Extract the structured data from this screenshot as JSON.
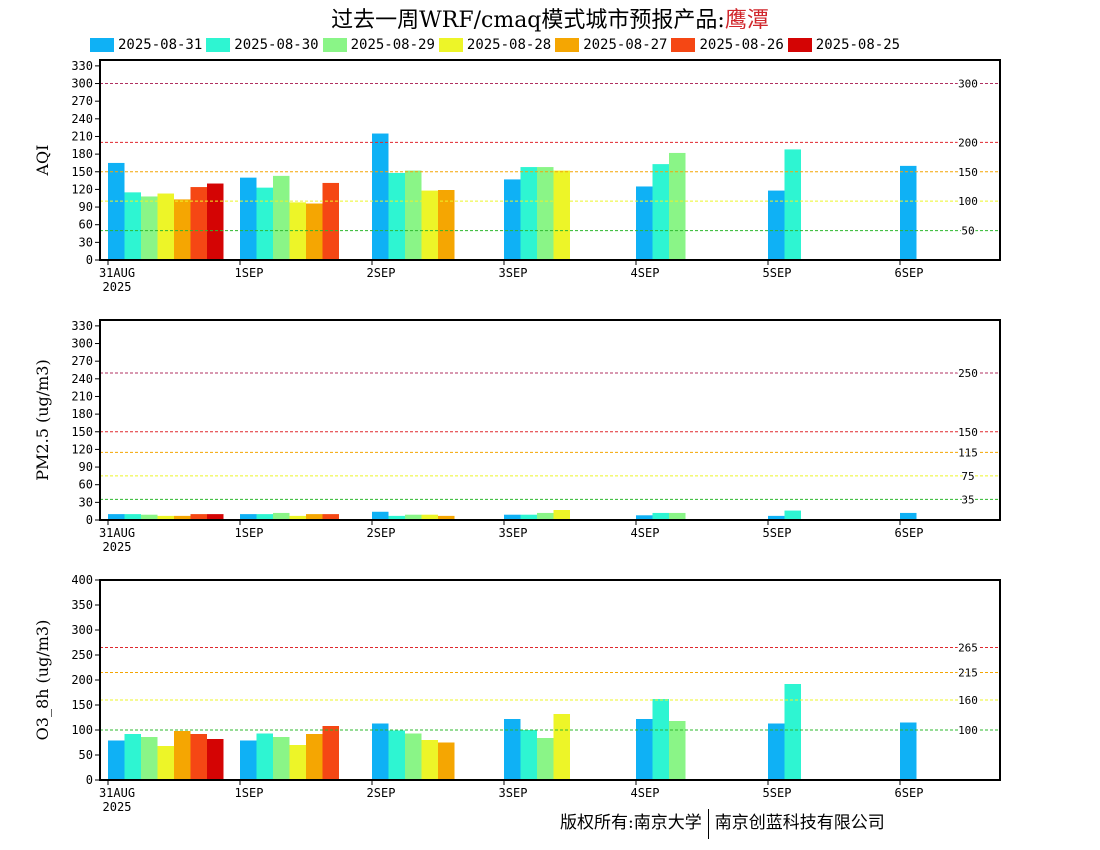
{
  "title": {
    "prefix": "过去一周WRF/cmaq模式城市预报产品:",
    "city": "鹰潭"
  },
  "legend": {
    "items": [
      {
        "label": "2025-08-31",
        "color": "#0fb1f5"
      },
      {
        "label": "2025-08-30",
        "color": "#2ef5d2"
      },
      {
        "label": "2025-08-29",
        "color": "#8af587"
      },
      {
        "label": "2025-08-28",
        "color": "#edf528"
      },
      {
        "label": "2025-08-27",
        "color": "#f5a602"
      },
      {
        "label": "2025-08-26",
        "color": "#f54714"
      },
      {
        "label": "2025-08-25",
        "color": "#d40404"
      }
    ]
  },
  "x_axis": {
    "categories": [
      "31AUG",
      "1SEP",
      "2SEP",
      "3SEP",
      "4SEP",
      "5SEP",
      "6SEP"
    ],
    "first_year": "2025"
  },
  "chart_data": [
    {
      "type": "bar",
      "ylabel": "AQI",
      "ylim": [
        0,
        340
      ],
      "yticks": [
        0,
        30,
        60,
        90,
        120,
        150,
        180,
        210,
        240,
        270,
        300,
        330
      ],
      "categories": [
        "31AUG",
        "1SEP",
        "2SEP",
        "3SEP",
        "4SEP",
        "5SEP",
        "6SEP"
      ],
      "thresholds": [
        {
          "value": 300,
          "label": "300",
          "color": "#b03060"
        },
        {
          "value": 200,
          "label": "200",
          "color": "#e0282e"
        },
        {
          "value": 150,
          "label": "150",
          "color": "#f5a602"
        },
        {
          "value": 100,
          "label": "100",
          "color": "#edf528"
        },
        {
          "value": 50,
          "label": "50",
          "color": "#2db82d"
        }
      ],
      "series": [
        {
          "name": "2025-08-31",
          "values": [
            165,
            140,
            215,
            137,
            125,
            118,
            160
          ]
        },
        {
          "name": "2025-08-30",
          "values": [
            115,
            123,
            148,
            158,
            163,
            188,
            null
          ]
        },
        {
          "name": "2025-08-29",
          "values": [
            108,
            143,
            152,
            158,
            182,
            null,
            null
          ]
        },
        {
          "name": "2025-08-28",
          "values": [
            113,
            98,
            118,
            152,
            null,
            null,
            null
          ]
        },
        {
          "name": "2025-08-27",
          "values": [
            103,
            96,
            119,
            null,
            null,
            null,
            null
          ]
        },
        {
          "name": "2025-08-26",
          "values": [
            124,
            131,
            null,
            null,
            null,
            null,
            null
          ]
        },
        {
          "name": "2025-08-25",
          "values": [
            130,
            null,
            null,
            null,
            null,
            null,
            null
          ]
        }
      ]
    },
    {
      "type": "bar",
      "ylabel": "PM2.5 (ug/m3)",
      "ylim": [
        0,
        340
      ],
      "yticks": [
        0,
        30,
        60,
        90,
        120,
        150,
        180,
        210,
        240,
        270,
        300,
        330
      ],
      "categories": [
        "31AUG",
        "1SEP",
        "2SEP",
        "3SEP",
        "4SEP",
        "5SEP",
        "6SEP"
      ],
      "thresholds": [
        {
          "value": 250,
          "label": "250",
          "color": "#b03060"
        },
        {
          "value": 150,
          "label": "150",
          "color": "#e0282e"
        },
        {
          "value": 115,
          "label": "115",
          "color": "#f5a602"
        },
        {
          "value": 75,
          "label": "75",
          "color": "#edf528"
        },
        {
          "value": 35,
          "label": "35",
          "color": "#2db82d"
        }
      ],
      "series": [
        {
          "name": "2025-08-31",
          "values": [
            10,
            10,
            14,
            9,
            8,
            7,
            12
          ]
        },
        {
          "name": "2025-08-30",
          "values": [
            10,
            10,
            7,
            9,
            12,
            16,
            null
          ]
        },
        {
          "name": "2025-08-29",
          "values": [
            9,
            12,
            9,
            12,
            12,
            null,
            null
          ]
        },
        {
          "name": "2025-08-28",
          "values": [
            7,
            7,
            9,
            17,
            null,
            null,
            null
          ]
        },
        {
          "name": "2025-08-27",
          "values": [
            7,
            10,
            7,
            null,
            null,
            null,
            null
          ]
        },
        {
          "name": "2025-08-26",
          "values": [
            10,
            10,
            null,
            null,
            null,
            null,
            null
          ]
        },
        {
          "name": "2025-08-25",
          "values": [
            10,
            null,
            null,
            null,
            null,
            null,
            null
          ]
        }
      ]
    },
    {
      "type": "bar",
      "ylabel": "O3_8h (ug/m3)",
      "ylim": [
        0,
        400
      ],
      "yticks": [
        0,
        50,
        100,
        150,
        200,
        250,
        300,
        350,
        400
      ],
      "categories": [
        "31AUG",
        "1SEP",
        "2SEP",
        "3SEP",
        "4SEP",
        "5SEP",
        "6SEP"
      ],
      "thresholds": [
        {
          "value": 265,
          "label": "265",
          "color": "#e0282e"
        },
        {
          "value": 215,
          "label": "215",
          "color": "#f5a602"
        },
        {
          "value": 160,
          "label": "160",
          "color": "#edf528"
        },
        {
          "value": 100,
          "label": "100",
          "color": "#2db82d"
        }
      ],
      "series": [
        {
          "name": "2025-08-31",
          "values": [
            79,
            79,
            113,
            122,
            122,
            113,
            115
          ]
        },
        {
          "name": "2025-08-30",
          "values": [
            92,
            93,
            99,
            100,
            162,
            192,
            null
          ]
        },
        {
          "name": "2025-08-29",
          "values": [
            86,
            86,
            93,
            84,
            118,
            null,
            null
          ]
        },
        {
          "name": "2025-08-28",
          "values": [
            68,
            70,
            80,
            132,
            null,
            null,
            null
          ]
        },
        {
          "name": "2025-08-27",
          "values": [
            98,
            92,
            75,
            null,
            null,
            null,
            null
          ]
        },
        {
          "name": "2025-08-26",
          "values": [
            92,
            108,
            null,
            null,
            null,
            null,
            null
          ]
        },
        {
          "name": "2025-08-25",
          "values": [
            82,
            null,
            null,
            null,
            null,
            null,
            null
          ]
        }
      ]
    }
  ],
  "footer": {
    "left": "版权所有:南京大学",
    "right": "南京创蓝科技有限公司"
  }
}
